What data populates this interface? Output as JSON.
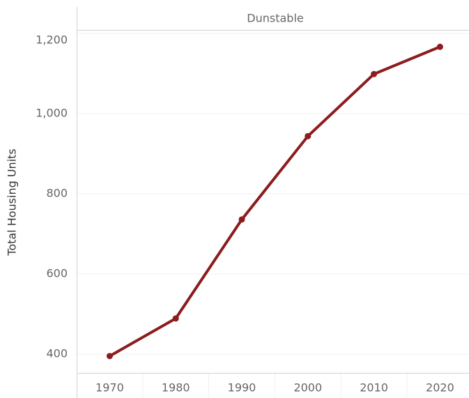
{
  "chart_data": {
    "type": "line",
    "title": "Dunstable",
    "y_label": "Total Housing Units",
    "categories": [
      "1970",
      "1980",
      "1990",
      "2000",
      "2010",
      "2020"
    ],
    "series": [
      {
        "name": "Total Housing Units",
        "color": "#8c1c1e",
        "values": [
          395,
          489,
          736,
          944,
          1099,
          1167
        ]
      }
    ],
    "ylim": [
      353,
      1209
    ],
    "yticks": [
      {
        "value": 400,
        "label": "400"
      },
      {
        "value": 600,
        "label": "600"
      },
      {
        "value": 800,
        "label": "800"
      },
      {
        "value": 1000,
        "label": "1,000"
      },
      {
        "value": 1200,
        "label": "1,200"
      }
    ],
    "grid": true
  }
}
